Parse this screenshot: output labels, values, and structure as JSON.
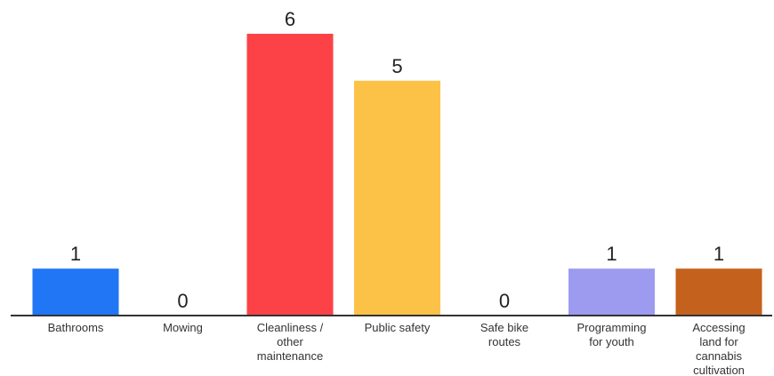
{
  "chart_data": {
    "type": "bar",
    "title": "",
    "xlabel": "",
    "ylabel": "",
    "ylim": [
      0,
      6
    ],
    "grid": false,
    "legend": "none",
    "categories": [
      "Bathrooms",
      "Mowing",
      "Cleanliness / other maintenance",
      "Public safety",
      "Safe bike routes",
      "Programming for youth",
      "Accessing land for cannabis cultivation"
    ],
    "category_lines": [
      [
        "Bathrooms"
      ],
      [
        "Mowing"
      ],
      [
        "Cleanliness /",
        "other",
        "maintenance"
      ],
      [
        "Public safety"
      ],
      [
        "Safe bike",
        "routes"
      ],
      [
        "Programming",
        "for youth"
      ],
      [
        "Accessing",
        "land for",
        "cannabis",
        "cultivation"
      ]
    ],
    "values": [
      1,
      0,
      6,
      5,
      0,
      1,
      1
    ],
    "colors": [
      "#2176f5",
      "#2176f5",
      "#fc4246",
      "#fcc248",
      "#2176f5",
      "#9d9bf0",
      "#c4611c"
    ],
    "axis_color": "#333333"
  }
}
